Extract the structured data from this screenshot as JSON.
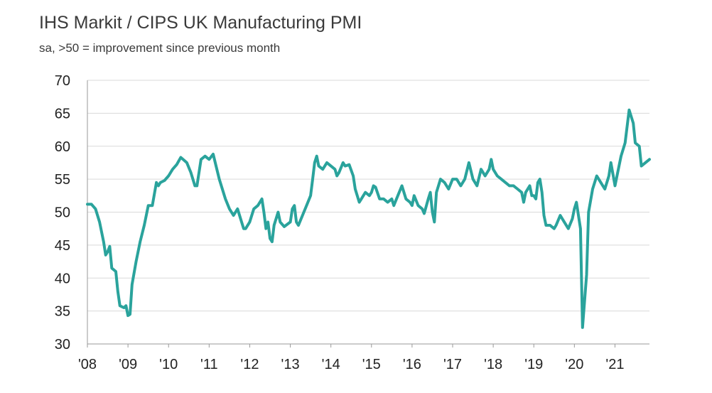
{
  "title": "IHS Markit / CIPS UK Manufacturing PMI",
  "subtitle": "sa, >50 = improvement since previous month",
  "colors": {
    "line": "#2aa39c",
    "grid": "#d9d9d9",
    "axis": "#9a9a9a",
    "text": "#222222"
  },
  "chart_data": {
    "type": "line",
    "title": "IHS Markit / CIPS UK Manufacturing PMI",
    "subtitle": "sa, >50 = improvement since previous month",
    "xlabel": "",
    "ylabel": "",
    "ylim": [
      30,
      70
    ],
    "yticks": [
      30,
      35,
      40,
      45,
      50,
      55,
      60,
      65,
      70
    ],
    "xlim": [
      2008.0,
      2021.85
    ],
    "xticks": [
      {
        "value": 2008,
        "label": "'08"
      },
      {
        "value": 2009,
        "label": "'09"
      },
      {
        "value": 2010,
        "label": "'10"
      },
      {
        "value": 2011,
        "label": "'11"
      },
      {
        "value": 2012,
        "label": "'12"
      },
      {
        "value": 2013,
        "label": "'13"
      },
      {
        "value": 2014,
        "label": "'14"
      },
      {
        "value": 2015,
        "label": "'15"
      },
      {
        "value": 2016,
        "label": "'16"
      },
      {
        "value": 2017,
        "label": "'17"
      },
      {
        "value": 2018,
        "label": "'18"
      },
      {
        "value": 2019,
        "label": "'19"
      },
      {
        "value": 2020,
        "label": "'20"
      },
      {
        "value": 2021,
        "label": "'21"
      }
    ],
    "grid": true,
    "legend": "none",
    "series": [
      {
        "values": [
          [
            2008.0,
            51.2
          ],
          [
            2008.1,
            51.2
          ],
          [
            2008.2,
            50.5
          ],
          [
            2008.3,
            48.5
          ],
          [
            2008.4,
            45.5
          ],
          [
            2008.45,
            43.5
          ],
          [
            2008.5,
            44.0
          ],
          [
            2008.55,
            44.8
          ],
          [
            2008.6,
            41.5
          ],
          [
            2008.7,
            41.0
          ],
          [
            2008.75,
            38.0
          ],
          [
            2008.8,
            35.8
          ],
          [
            2008.9,
            35.5
          ],
          [
            2008.95,
            35.8
          ],
          [
            2009.0,
            34.3
          ],
          [
            2009.05,
            34.5
          ],
          [
            2009.1,
            39.0
          ],
          [
            2009.2,
            42.5
          ],
          [
            2009.3,
            45.5
          ],
          [
            2009.4,
            48.0
          ],
          [
            2009.5,
            51.0
          ],
          [
            2009.6,
            51.0
          ],
          [
            2009.7,
            54.5
          ],
          [
            2009.75,
            54.0
          ],
          [
            2009.8,
            54.5
          ],
          [
            2009.9,
            54.8
          ],
          [
            2010.0,
            55.5
          ],
          [
            2010.1,
            56.5
          ],
          [
            2010.2,
            57.2
          ],
          [
            2010.3,
            58.3
          ],
          [
            2010.45,
            57.5
          ],
          [
            2010.55,
            56.0
          ],
          [
            2010.65,
            54.0
          ],
          [
            2010.7,
            54.0
          ],
          [
            2010.8,
            58.0
          ],
          [
            2010.9,
            58.5
          ],
          [
            2011.0,
            58.0
          ],
          [
            2011.1,
            58.8
          ],
          [
            2011.15,
            57.5
          ],
          [
            2011.25,
            55.0
          ],
          [
            2011.4,
            52.0
          ],
          [
            2011.5,
            50.5
          ],
          [
            2011.6,
            49.5
          ],
          [
            2011.7,
            50.5
          ],
          [
            2011.8,
            48.5
          ],
          [
            2011.85,
            47.5
          ],
          [
            2011.9,
            47.5
          ],
          [
            2012.0,
            48.5
          ],
          [
            2012.1,
            50.5
          ],
          [
            2012.2,
            51.0
          ],
          [
            2012.3,
            52.0
          ],
          [
            2012.35,
            50.0
          ],
          [
            2012.4,
            47.5
          ],
          [
            2012.45,
            48.5
          ],
          [
            2012.5,
            46.0
          ],
          [
            2012.55,
            45.5
          ],
          [
            2012.6,
            48.0
          ],
          [
            2012.7,
            50.0
          ],
          [
            2012.75,
            48.5
          ],
          [
            2012.85,
            47.8
          ],
          [
            2013.0,
            48.5
          ],
          [
            2013.05,
            50.5
          ],
          [
            2013.1,
            51.0
          ],
          [
            2013.15,
            48.5
          ],
          [
            2013.2,
            48.0
          ],
          [
            2013.3,
            49.5
          ],
          [
            2013.4,
            51.0
          ],
          [
            2013.5,
            52.5
          ],
          [
            2013.55,
            55.0
          ],
          [
            2013.6,
            57.5
          ],
          [
            2013.65,
            58.5
          ],
          [
            2013.7,
            57.0
          ],
          [
            2013.8,
            56.5
          ],
          [
            2013.9,
            57.5
          ],
          [
            2014.0,
            57.0
          ],
          [
            2014.1,
            56.5
          ],
          [
            2014.15,
            55.5
          ],
          [
            2014.2,
            56.0
          ],
          [
            2014.3,
            57.5
          ],
          [
            2014.35,
            57.0
          ],
          [
            2014.45,
            57.2
          ],
          [
            2014.55,
            55.5
          ],
          [
            2014.6,
            53.5
          ],
          [
            2014.7,
            51.5
          ],
          [
            2014.75,
            52.0
          ],
          [
            2014.85,
            53.0
          ],
          [
            2014.95,
            52.5
          ],
          [
            2015.0,
            53.0
          ],
          [
            2015.05,
            54.0
          ],
          [
            2015.1,
            53.8
          ],
          [
            2015.2,
            52.0
          ],
          [
            2015.3,
            52.0
          ],
          [
            2015.4,
            51.5
          ],
          [
            2015.5,
            52.0
          ],
          [
            2015.55,
            51.0
          ],
          [
            2015.65,
            52.5
          ],
          [
            2015.75,
            54.0
          ],
          [
            2015.85,
            52.0
          ],
          [
            2015.95,
            51.5
          ],
          [
            2016.0,
            51.0
          ],
          [
            2016.05,
            52.5
          ],
          [
            2016.15,
            51.0
          ],
          [
            2016.25,
            50.5
          ],
          [
            2016.3,
            49.8
          ],
          [
            2016.4,
            52.0
          ],
          [
            2016.45,
            53.0
          ],
          [
            2016.5,
            50.0
          ],
          [
            2016.55,
            48.5
          ],
          [
            2016.6,
            53.0
          ],
          [
            2016.7,
            55.0
          ],
          [
            2016.8,
            54.5
          ],
          [
            2016.9,
            53.5
          ],
          [
            2017.0,
            55.0
          ],
          [
            2017.1,
            55.0
          ],
          [
            2017.2,
            54.0
          ],
          [
            2017.3,
            55.0
          ],
          [
            2017.4,
            57.5
          ],
          [
            2017.5,
            55.0
          ],
          [
            2017.6,
            54.0
          ],
          [
            2017.7,
            56.5
          ],
          [
            2017.8,
            55.5
          ],
          [
            2017.9,
            56.5
          ],
          [
            2017.95,
            58.0
          ],
          [
            2018.0,
            56.5
          ],
          [
            2018.1,
            55.5
          ],
          [
            2018.2,
            55.0
          ],
          [
            2018.3,
            54.5
          ],
          [
            2018.4,
            54.0
          ],
          [
            2018.5,
            54.0
          ],
          [
            2018.6,
            53.5
          ],
          [
            2018.7,
            53.0
          ],
          [
            2018.75,
            51.5
          ],
          [
            2018.8,
            53.0
          ],
          [
            2018.9,
            54.0
          ],
          [
            2018.95,
            52.5
          ],
          [
            2019.0,
            52.5
          ],
          [
            2019.05,
            52.0
          ],
          [
            2019.1,
            54.5
          ],
          [
            2019.15,
            55.0
          ],
          [
            2019.2,
            53.0
          ],
          [
            2019.25,
            49.5
          ],
          [
            2019.3,
            48.0
          ],
          [
            2019.4,
            48.0
          ],
          [
            2019.5,
            47.5
          ],
          [
            2019.55,
            48.0
          ],
          [
            2019.65,
            49.5
          ],
          [
            2019.75,
            48.5
          ],
          [
            2019.85,
            47.5
          ],
          [
            2019.95,
            49.0
          ],
          [
            2020.0,
            50.5
          ],
          [
            2020.05,
            51.5
          ],
          [
            2020.15,
            47.5
          ],
          [
            2020.2,
            32.5
          ],
          [
            2020.3,
            40.5
          ],
          [
            2020.35,
            50.0
          ],
          [
            2020.45,
            53.5
          ],
          [
            2020.55,
            55.5
          ],
          [
            2020.65,
            54.5
          ],
          [
            2020.75,
            53.5
          ],
          [
            2020.85,
            55.5
          ],
          [
            2020.9,
            57.5
          ],
          [
            2021.0,
            54.0
          ],
          [
            2021.05,
            55.5
          ],
          [
            2021.15,
            58.5
          ],
          [
            2021.25,
            60.5
          ],
          [
            2021.35,
            65.5
          ],
          [
            2021.45,
            63.5
          ],
          [
            2021.5,
            60.5
          ],
          [
            2021.6,
            60.0
          ],
          [
            2021.65,
            57.0
          ],
          [
            2021.75,
            57.5
          ],
          [
            2021.85,
            58.0
          ]
        ]
      }
    ]
  }
}
